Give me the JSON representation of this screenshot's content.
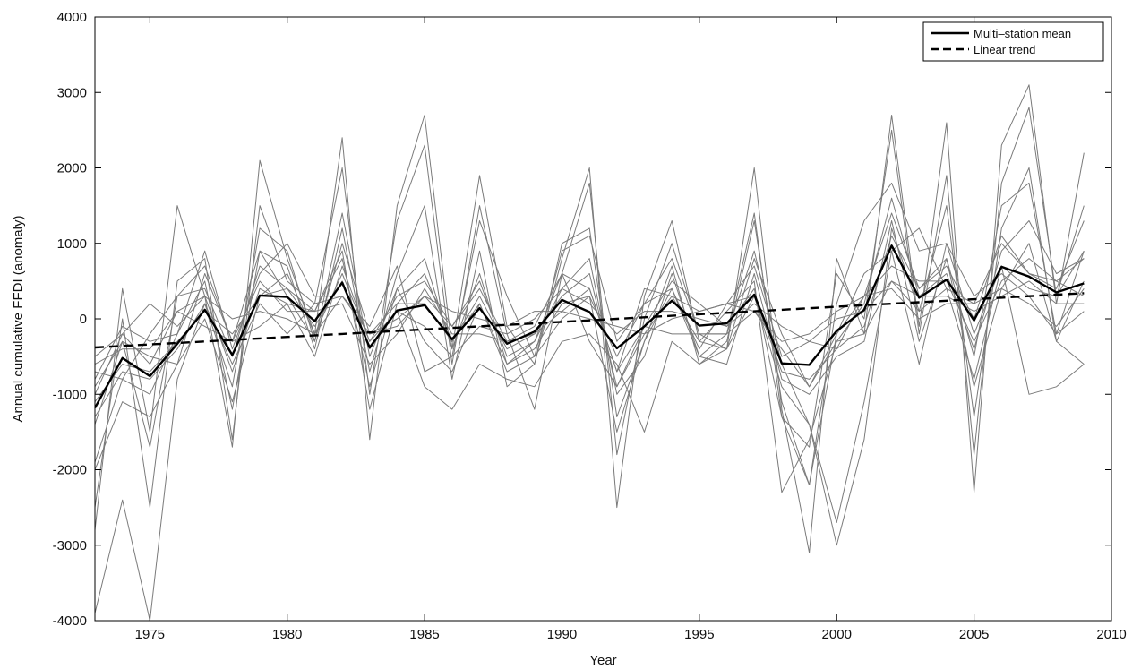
{
  "chart_data": {
    "type": "line",
    "title": "",
    "xlabel": "Year",
    "ylabel": "Annual cumulative FFDI (anomaly)",
    "xlim": [
      1973,
      2010
    ],
    "ylim": [
      -4000,
      4000
    ],
    "xticks": [
      1975,
      1980,
      1985,
      1990,
      1995,
      2000,
      2005,
      2010
    ],
    "yticks": [
      -4000,
      -3000,
      -2000,
      -1000,
      0,
      1000,
      2000,
      3000,
      4000
    ],
    "grid": false,
    "legend_position": "top-right",
    "legend": [
      "Multi–station mean",
      "Linear trend"
    ],
    "colors": {
      "stations": "#7a7a7a",
      "mean": "#000000",
      "trend": "#000000",
      "axis": "#000000"
    },
    "x": [
      1973,
      1974,
      1975,
      1976,
      1977,
      1978,
      1979,
      1980,
      1981,
      1982,
      1983,
      1984,
      1985,
      1986,
      1987,
      1988,
      1989,
      1990,
      1991,
      1992,
      1993,
      1994,
      1995,
      1996,
      1997,
      1998,
      1999,
      2000,
      2001,
      2002,
      2003,
      2004,
      2005,
      2006,
      2007,
      2008,
      2009
    ],
    "series": [
      {
        "name": "Multi–station mean",
        "style": "solid",
        "values": [
          -1180,
          -520,
          -760,
          -330,
          120,
          -480,
          310,
          290,
          -30,
          480,
          -380,
          110,
          180,
          -270,
          140,
          -330,
          -170,
          250,
          90,
          -390,
          -100,
          240,
          -90,
          -60,
          320,
          -590,
          -610,
          -160,
          120,
          970,
          280,
          520,
          -20,
          690,
          560,
          350,
          470
        ]
      },
      {
        "name": "Linear trend",
        "style": "dashed",
        "values": [
          -380,
          -360,
          -340,
          -320,
          -300,
          -280,
          -260,
          -240,
          -220,
          -200,
          -180,
          -160,
          -140,
          -120,
          -100,
          -80,
          -60,
          -40,
          -20,
          0,
          20,
          40,
          60,
          80,
          100,
          120,
          140,
          160,
          180,
          200,
          220,
          240,
          260,
          280,
          300,
          320,
          340
        ]
      }
    ],
    "station_series": [
      [
        -2800,
        400,
        -1500,
        1500,
        300,
        -1700,
        2100,
        800,
        -200,
        2400,
        -1600,
        1500,
        2700,
        -400,
        1900,
        -100,
        -600,
        800,
        2000,
        -2500,
        300,
        1300,
        -300,
        -400,
        2000,
        -1200,
        -3100,
        800,
        -200,
        2700,
        -100,
        2600,
        -2300,
        2300,
        3100,
        200,
        2200
      ],
      [
        -2500,
        0,
        -2500,
        500,
        800,
        -1600,
        1500,
        500,
        200,
        2000,
        -1000,
        1300,
        2300,
        -600,
        1500,
        -200,
        -1200,
        600,
        1800,
        -1800,
        0,
        1000,
        -200,
        -200,
        1400,
        -1300,
        -1700,
        600,
        0,
        2500,
        -200,
        1900,
        -1800,
        1800,
        2800,
        300,
        1500
      ],
      [
        -1900,
        -800,
        -1000,
        -200,
        500,
        -1200,
        900,
        700,
        -400,
        1200,
        -700,
        600,
        1500,
        -800,
        900,
        -900,
        -600,
        1000,
        1200,
        -1300,
        -300,
        700,
        -600,
        -300,
        1300,
        -1100,
        -2200,
        -200,
        300,
        1400,
        400,
        800,
        -500,
        1500,
        1800,
        -200,
        900
      ],
      [
        -3900,
        -2400,
        -4000,
        -800,
        200,
        -900,
        1200,
        900,
        -300,
        1400,
        -500,
        400,
        800,
        -400,
        600,
        -600,
        -300,
        400,
        800,
        -1000,
        -500,
        600,
        -500,
        -200,
        900,
        -600,
        -1400,
        -3000,
        -1600,
        1200,
        100,
        1500,
        -1300,
        1200,
        2000,
        -300,
        -600
      ],
      [
        -1400,
        -300,
        -1700,
        300,
        400,
        -500,
        700,
        400,
        100,
        900,
        -1200,
        200,
        600,
        -300,
        300,
        -400,
        -200,
        300,
        600,
        -900,
        -200,
        300,
        -300,
        100,
        500,
        -2300,
        -1600,
        -300,
        200,
        1600,
        300,
        600,
        -400,
        900,
        1300,
        600,
        800
      ],
      [
        -1000,
        -200,
        -600,
        100,
        300,
        -700,
        400,
        200,
        -500,
        700,
        -300,
        100,
        -900,
        -1200,
        -600,
        -800,
        -900,
        -300,
        -200,
        -600,
        -1500,
        -300,
        -600,
        -400,
        300,
        -900,
        -1400,
        -2700,
        -1100,
        900,
        -600,
        1000,
        -200,
        700,
        -1000,
        -900,
        -600
      ],
      [
        -800,
        -100,
        -300,
        -200,
        900,
        -400,
        600,
        1000,
        300,
        300,
        -100,
        700,
        -700,
        -500,
        1300,
        300,
        -500,
        900,
        1100,
        -300,
        200,
        800,
        -200,
        -400,
        800,
        -200,
        -900,
        -200,
        600,
        900,
        1200,
        400,
        200,
        1000,
        600,
        400,
        1300
      ],
      [
        -2000,
        -1100,
        -1300,
        -600,
        0,
        -1100,
        300,
        600,
        -200,
        600,
        -300,
        300,
        500,
        -100,
        400,
        -300,
        -100,
        600,
        -300,
        -900,
        -100,
        500,
        200,
        -100,
        400,
        -1300,
        -2200,
        200,
        1300,
        1800,
        900,
        1000,
        300,
        600,
        300,
        -200,
        100
      ],
      [
        -1300,
        -700,
        -800,
        -400,
        200,
        -600,
        200,
        -200,
        200,
        300,
        -200,
        200,
        200,
        -300,
        200,
        -600,
        -400,
        200,
        300,
        -500,
        200,
        400,
        -400,
        200,
        300,
        -700,
        -800,
        -400,
        300,
        700,
        500,
        500,
        -300,
        500,
        800,
        500,
        300
      ],
      [
        -600,
        -400,
        -400,
        100,
        -100,
        -300,
        -100,
        200,
        100,
        200,
        -600,
        -200,
        400,
        -200,
        -200,
        -300,
        -200,
        100,
        400,
        -700,
        -100,
        -200,
        -200,
        -200,
        100,
        -400,
        -900,
        -300,
        -200,
        500,
        100,
        400,
        -800,
        700,
        400,
        300,
        900
      ],
      [
        -1100,
        -600,
        -700,
        -300,
        100,
        -200,
        300,
        400,
        -100,
        500,
        -400,
        100,
        -100,
        -500,
        -100,
        -200,
        0,
        400,
        200,
        -200,
        100,
        100,
        0,
        -100,
        200,
        -100,
        -300,
        0,
        100,
        500,
        300,
        300,
        100,
        300,
        500,
        200,
        200
      ],
      [
        -500,
        -200,
        200,
        -100,
        300,
        0,
        100,
        0,
        -200,
        300,
        -200,
        -100,
        300,
        100,
        0,
        -100,
        100,
        100,
        0,
        -100,
        -200,
        0,
        100,
        200,
        100,
        -300,
        -200,
        100,
        300,
        400,
        0,
        200,
        200,
        400,
        200,
        -100,
        400
      ],
      [
        -900,
        -300,
        -500,
        -600,
        600,
        -300,
        500,
        100,
        100,
        800,
        -900,
        400,
        -300,
        -700,
        200,
        -700,
        -500,
        0,
        300,
        -1500,
        -300,
        400,
        -500,
        -600,
        600,
        -800,
        -1000,
        -500,
        -300,
        1300,
        -300,
        800,
        -900,
        400,
        1000,
        -300,
        500
      ],
      [
        -700,
        -800,
        -200,
        300,
        700,
        -300,
        900,
        300,
        -300,
        1000,
        -200,
        0,
        300,
        -100,
        500,
        -500,
        -300,
        600,
        400,
        -700,
        400,
        300,
        100,
        200,
        700,
        -500,
        -300,
        -400,
        -100,
        1100,
        400,
        700,
        0,
        1100,
        600,
        500,
        800
      ]
    ]
  }
}
